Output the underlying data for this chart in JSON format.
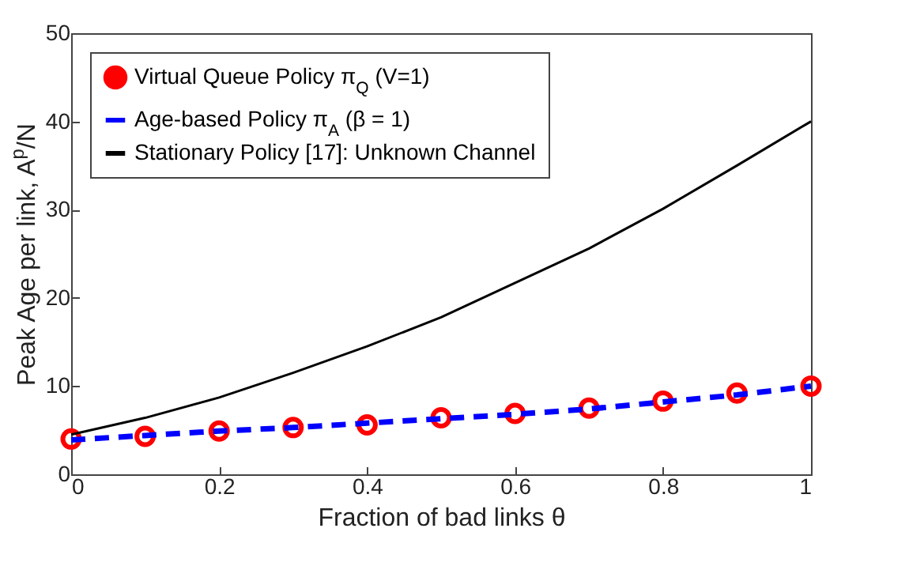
{
  "chart_data": {
    "type": "line",
    "xlabel": "Fraction of bad links θ",
    "ylabel": "Peak Age per link, A$^{p}$/N",
    "xlim": [
      0,
      1
    ],
    "ylim": [
      0,
      50
    ],
    "xticks": [
      0,
      0.2,
      0.4,
      0.6,
      0.8,
      1
    ],
    "yticks": [
      0,
      10,
      20,
      30,
      40,
      50
    ],
    "grid": false,
    "legend": "top left",
    "x": [
      0,
      0.1,
      0.2,
      0.3,
      0.4,
      0.5,
      0.6,
      0.7,
      0.8,
      0.9,
      1
    ],
    "series": [
      {
        "name": "Virtual Queue Policy π$_{Q}$ (V=1)",
        "type": "scatter",
        "marker": "circle",
        "color": "#ff0000",
        "values": [
          4.0,
          4.3,
          4.9,
          5.3,
          5.6,
          6.4,
          6.9,
          7.5,
          8.3,
          9.2,
          10
        ]
      },
      {
        "name": "Age-based Policy π$_{A}$ (β = 1)",
        "line_style": "dashed",
        "color": "#0000ff",
        "values": [
          3.9,
          4.4,
          4.9,
          5.3,
          5.8,
          6.3,
          6.8,
          7.4,
          8.2,
          9.0,
          10
        ]
      },
      {
        "name": "Stationary Policy [17]: Unknown Channel",
        "line_style": "solid",
        "color": "#000000",
        "values": [
          4.5,
          6.4,
          8.7,
          11.5,
          14.5,
          17.8,
          21.7,
          25.6,
          30.1,
          35,
          40
        ]
      }
    ]
  }
}
